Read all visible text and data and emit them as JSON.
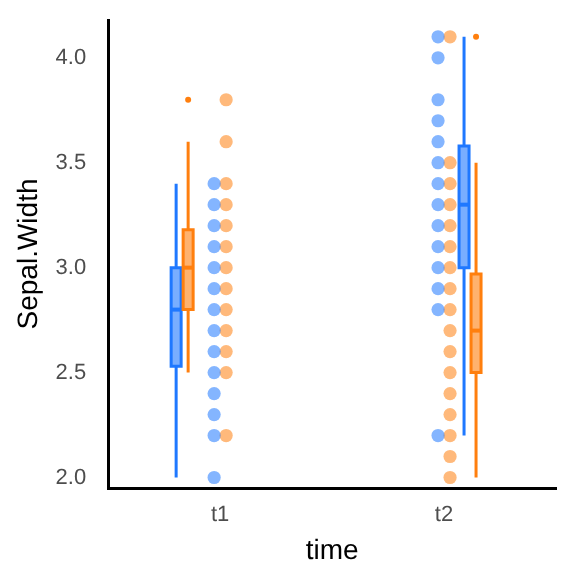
{
  "chart_data": {
    "type": "box",
    "xlabel": "time",
    "ylabel": "Sepal.Width",
    "categories": [
      "t1",
      "t2"
    ],
    "ylim": [
      1.95,
      4.18
    ],
    "yticks": [
      {
        "value": 2,
        "label": "2.0"
      },
      {
        "value": 2.5,
        "label": "2.5"
      },
      {
        "value": 3,
        "label": "3.0"
      },
      {
        "value": 3.5,
        "label": "3.5"
      },
      {
        "value": 4,
        "label": "4.0"
      }
    ],
    "grid": false,
    "legend": false,
    "marker": "circle",
    "series": [
      {
        "color": "#1f78ff",
        "boxes": [
          {
            "low": 2.0,
            "q1": 2.53,
            "median": 2.8,
            "q3": 3.0,
            "high": 3.4
          },
          {
            "low": 2.2,
            "q1": 3.0,
            "median": 3.3,
            "q3": 3.58,
            "high": 4.1
          }
        ]
      },
      {
        "color": "#ff7f0e",
        "boxes": [
          {
            "low": 2.5,
            "q1": 2.8,
            "median": 3.0,
            "q3": 3.18,
            "high": 3.6,
            "outliers": [
              3.8
            ]
          },
          {
            "low": 2.0,
            "q1": 2.5,
            "median": 2.7,
            "q3": 2.97,
            "high": 3.5,
            "outliers": [
              4.1
            ]
          }
        ]
      },
      {
        "type": "scatter",
        "color": "#1f78ff",
        "x": [
          "t1",
          "t1",
          "t1",
          "t1",
          "t1",
          "t1",
          "t1",
          "t1",
          "t1",
          "t1",
          "t1",
          "t1",
          "t1",
          "t1",
          "t2",
          "t2",
          "t2",
          "t2",
          "t2",
          "t2",
          "t2",
          "t2",
          "t2",
          "t2",
          "t2",
          "t2",
          "t2",
          "t2"
        ],
        "values": [
          2.0,
          2.2,
          2.3,
          2.4,
          2.5,
          2.6,
          2.7,
          2.8,
          2.9,
          3.0,
          3.1,
          3.2,
          3.3,
          3.4,
          2.2,
          2.9,
          3.0,
          3.1,
          3.2,
          3.3,
          3.4,
          3.5,
          3.6,
          3.7,
          3.8,
          4.0,
          4.1,
          2.8
        ]
      },
      {
        "type": "scatter",
        "color": "#ff7f0e",
        "x": [
          "t1",
          "t1",
          "t1",
          "t1",
          "t1",
          "t1",
          "t1",
          "t1",
          "t1",
          "t1",
          "t1",
          "t1",
          "t1",
          "t2",
          "t2",
          "t2",
          "t2",
          "t2",
          "t2",
          "t2",
          "t2",
          "t2",
          "t2",
          "t2",
          "t2",
          "t2",
          "t2",
          "t2",
          "t2",
          "t2"
        ],
        "values": [
          2.2,
          2.5,
          2.6,
          2.7,
          2.8,
          2.9,
          3.0,
          3.1,
          3.2,
          3.3,
          3.4,
          3.6,
          3.8,
          2.0,
          2.1,
          2.2,
          2.3,
          2.4,
          2.5,
          2.6,
          2.7,
          2.8,
          2.9,
          3.0,
          3.1,
          3.2,
          3.3,
          3.4,
          3.5,
          4.1
        ]
      }
    ]
  }
}
